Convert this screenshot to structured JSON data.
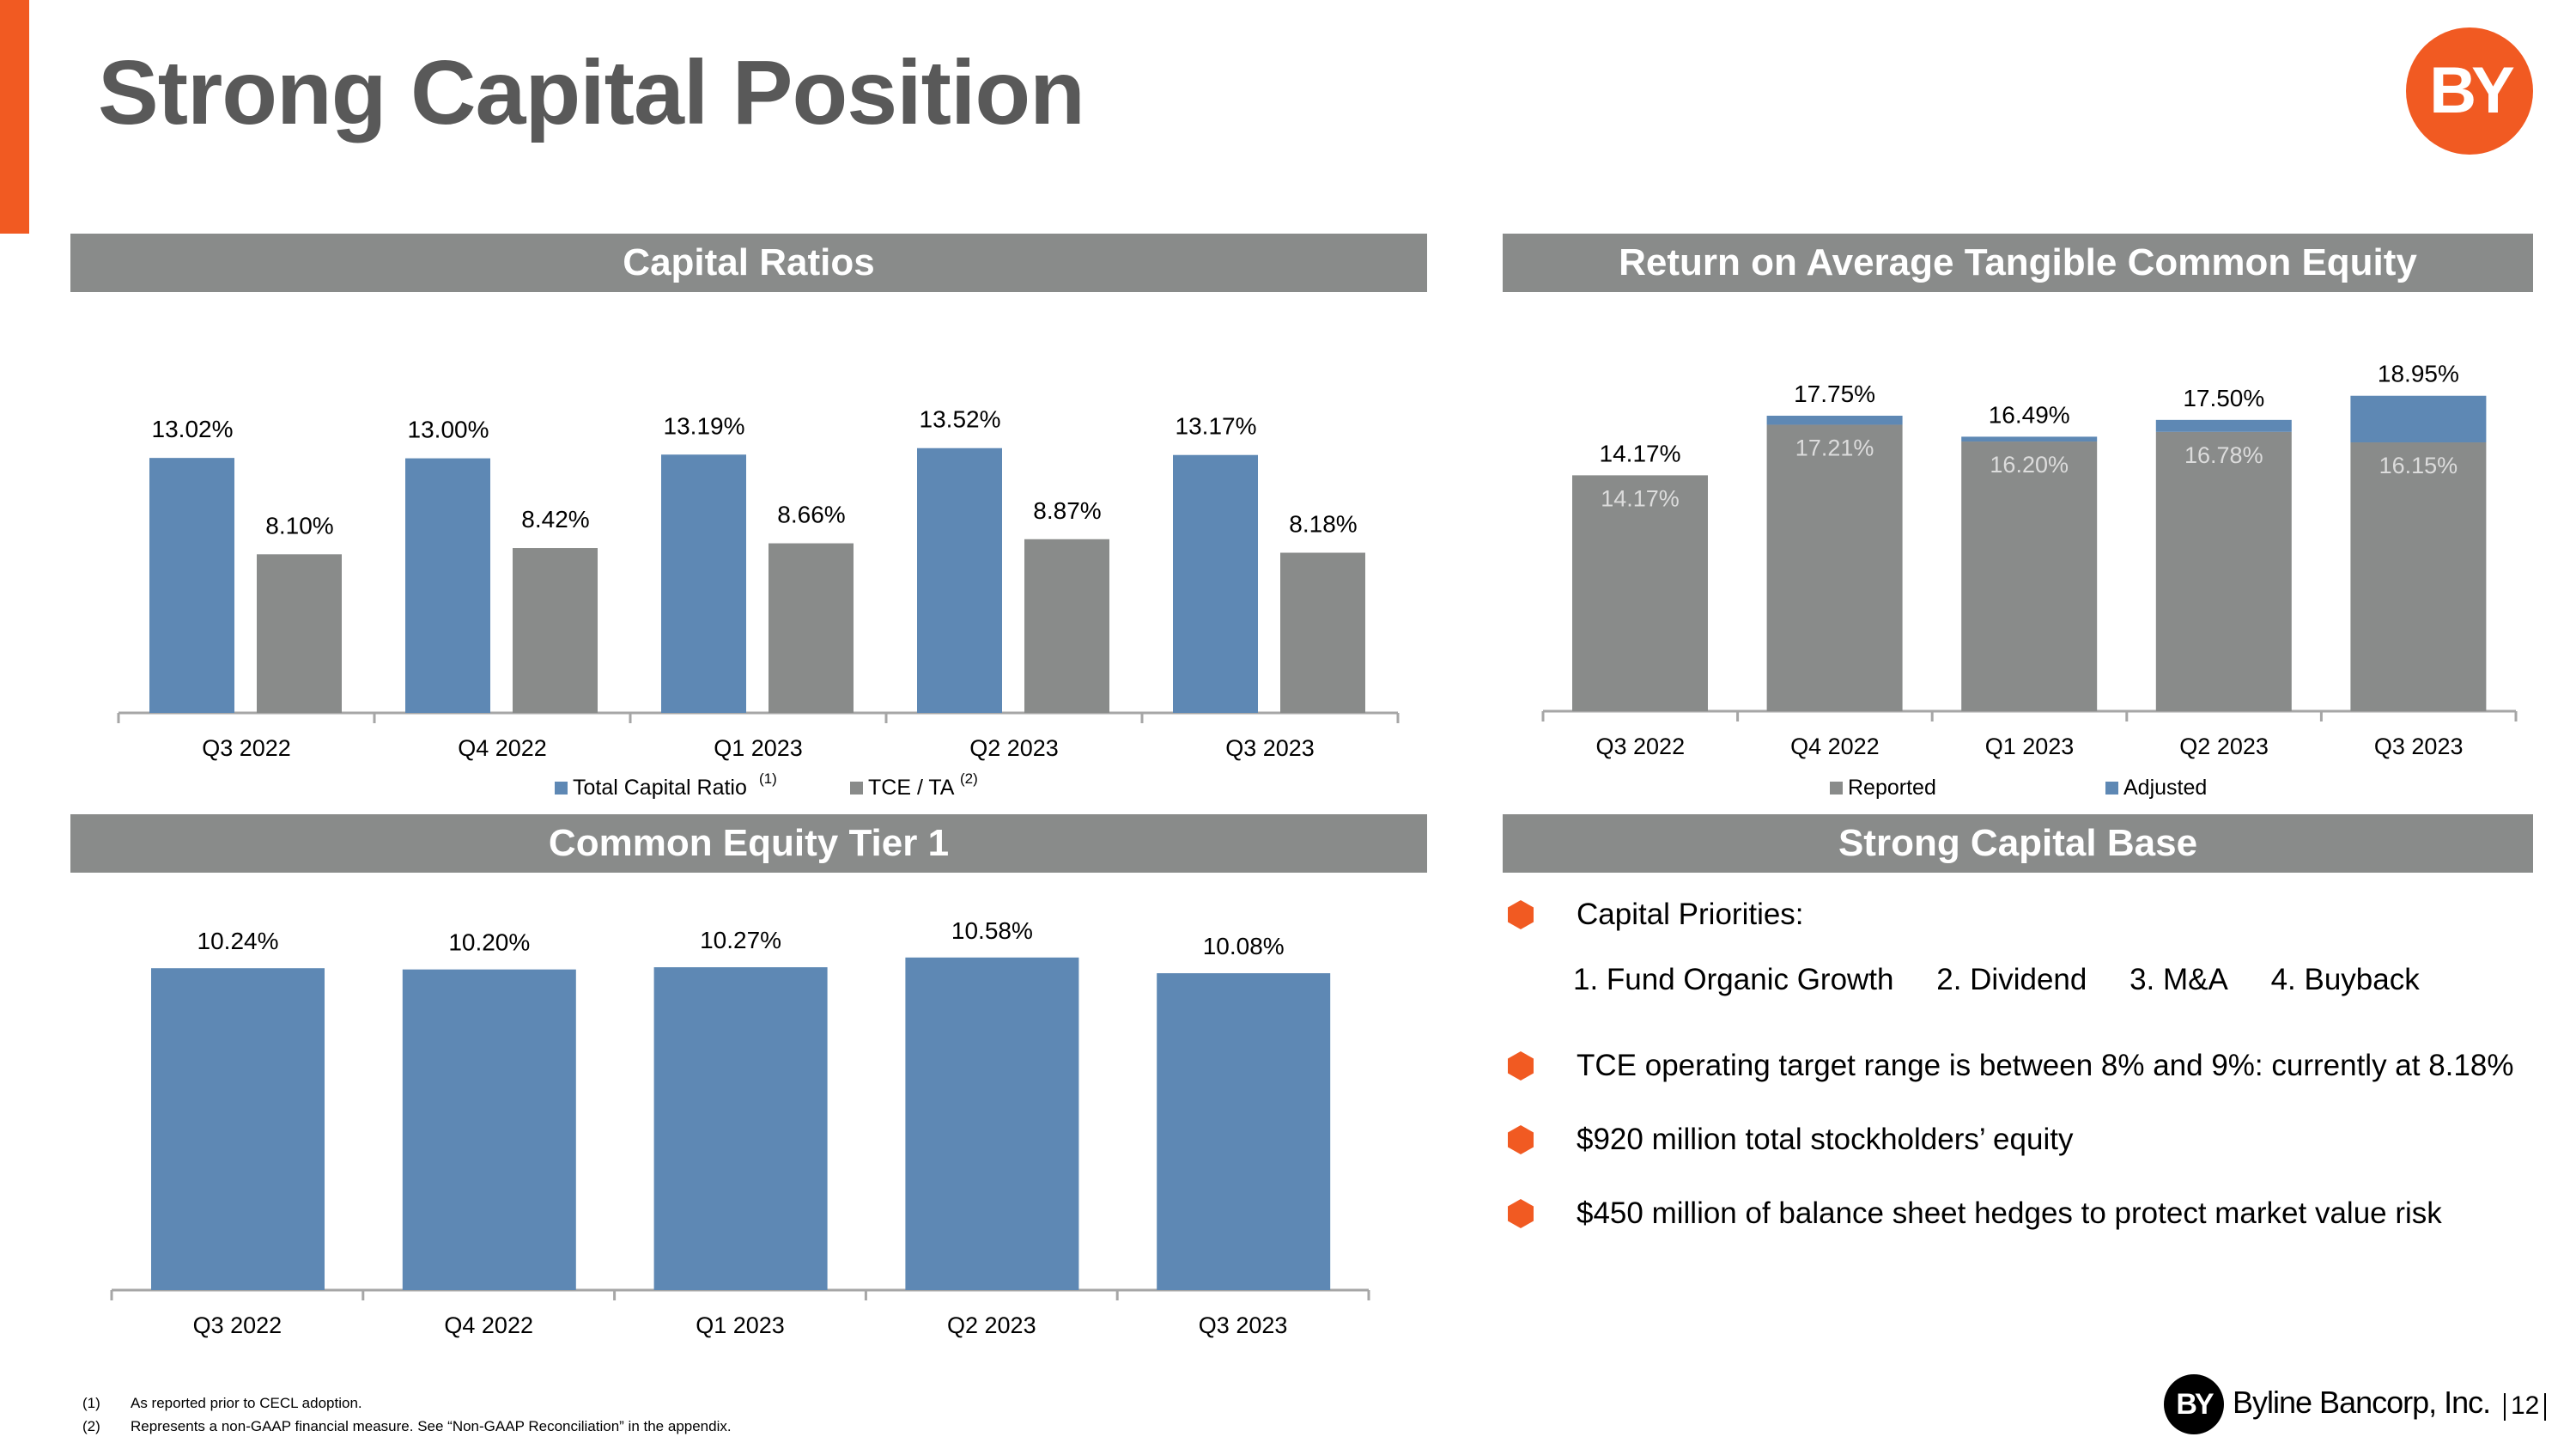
{
  "page_title": "Strong Capital Position",
  "logo_text": "BY",
  "headers": {
    "capital_ratios": "Capital Ratios",
    "rotce": "Return on Average Tangible Common Equity",
    "cet1": "Common Equity Tier 1",
    "capital_base": "Strong Capital Base"
  },
  "colors": {
    "accent": "#f15a22",
    "blue": "#5e88b4",
    "gray": "#898b8a",
    "header_bg": "#898b8a"
  },
  "chart_data": [
    {
      "type": "bar",
      "id": "capital-ratios",
      "categories": [
        "Q3 2022",
        "Q4 2022",
        "Q1 2023",
        "Q2 2023",
        "Q3 2023"
      ],
      "series": [
        {
          "name": "Total Capital Ratio",
          "superscript": "(1)",
          "values": [
            13.02,
            13.0,
            13.19,
            13.52,
            13.17
          ],
          "labels": [
            "13.02%",
            "13.00%",
            "13.19%",
            "13.52%",
            "13.17%"
          ]
        },
        {
          "name": "TCE / TA",
          "superscript": "(2)",
          "values": [
            8.1,
            8.42,
            8.66,
            8.87,
            8.18
          ],
          "labels": [
            "8.10%",
            "8.42%",
            "8.66%",
            "8.87%",
            "8.18%"
          ]
        }
      ],
      "legend": "bottom"
    },
    {
      "type": "bar",
      "stacked": true,
      "id": "rotce",
      "categories": [
        "Q3 2022",
        "Q4 2022",
        "Q1 2023",
        "Q2 2023",
        "Q3 2023"
      ],
      "series": [
        {
          "name": "Reported",
          "values": [
            14.17,
            17.21,
            16.2,
            16.78,
            16.15
          ],
          "labels": [
            "14.17%",
            "17.21%",
            "16.20%",
            "16.78%",
            "16.15%"
          ]
        },
        {
          "name": "Adjusted",
          "values": [
            14.17,
            17.75,
            16.49,
            17.5,
            18.95
          ],
          "labels": [
            "14.17%",
            "17.75%",
            "16.49%",
            "17.50%",
            "18.95%"
          ]
        }
      ],
      "legend": "bottom"
    },
    {
      "type": "bar",
      "id": "cet1",
      "categories": [
        "Q3 2022",
        "Q4 2022",
        "Q1 2023",
        "Q2 2023",
        "Q3 2023"
      ],
      "series": [
        {
          "values": [
            10.24,
            10.2,
            10.27,
            10.58,
            10.08
          ],
          "labels": [
            "10.24%",
            "10.20%",
            "10.27%",
            "10.58%",
            "10.08%"
          ]
        }
      ]
    }
  ],
  "capital_base": {
    "priorities_title": "Capital Priorities:",
    "priorities": [
      "1. Fund Organic Growth",
      "2. Dividend",
      "3. M&A",
      "4. Buyback"
    ],
    "bullets": [
      "TCE operating target range is between 8% and 9%: currently at 8.18%",
      "$920 million total stockholders’ equity",
      "$450 million of balance sheet hedges to protect market value risk"
    ]
  },
  "footnotes": [
    {
      "num": "(1)",
      "text": "As reported prior to CECL adoption."
    },
    {
      "num": "(2)",
      "text": "Represents a non-GAAP financial measure.  See “Non-GAAP Reconciliation” in the appendix."
    }
  ],
  "footer": {
    "badge": "BY",
    "company": "Byline Bancorp, Inc.",
    "page": "12"
  }
}
